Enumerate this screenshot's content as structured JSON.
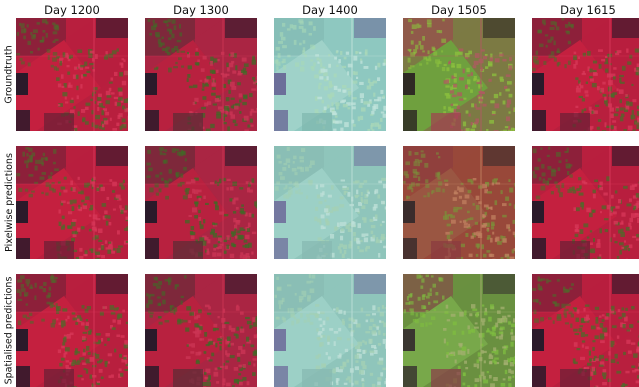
{
  "columns": [
    "Day 1200",
    "Day 1300",
    "Day 1400",
    "Day 1505",
    "Day 1615"
  ],
  "rows": [
    "Groundtruth",
    "Pixelwise predictions",
    "Spatialised predictions"
  ],
  "palettes": {
    "red": {
      "base": "#b81f3e",
      "tri": "#c4203f",
      "dark": "#2a1a2a",
      "green": "#4e6a2a",
      "band": "#6a2036",
      "light": "#d8385a"
    },
    "red_green": {
      "base": "#aa2543",
      "tri": "#b8213f",
      "dark": "#2a1a2a",
      "green": "#3f6a26",
      "band": "#5a2c34",
      "light": "#cc3555"
    },
    "cyan": {
      "base": "#8ec8c0",
      "tri": "#9fd2c9",
      "dark": "#6c6f9a",
      "green": "#a9d8b8",
      "band": "#7fb6ae",
      "light": "#c2e4dc"
    },
    "green": {
      "base": "#7c7a44",
      "tri": "#6fa03e",
      "dark": "#2f2a24",
      "green": "#8cc23e",
      "band": "#a14050",
      "light": "#b05a62"
    },
    "olive": {
      "base": "#98483a",
      "tri": "#9a5642",
      "dark": "#3a2c2c",
      "green": "#7c8e3a",
      "band": "#8a3a40",
      "light": "#c08060"
    },
    "cyan_pred": {
      "base": "#8fc5bb",
      "tri": "#9cd0c6",
      "dark": "#7478a0",
      "green": "#a4d0b4",
      "band": "#86b8b0",
      "light": "#bfe0d8"
    },
    "green_pred": {
      "base": "#6a9040",
      "tri": "#78a84a",
      "dark": "#3a3630",
      "green": "#7fbe40",
      "band": "#8a3a48",
      "light": "#a4b070"
    }
  },
  "grid": [
    [
      "red",
      "red_green",
      "cyan",
      "green",
      "red"
    ],
    [
      "red",
      "red_green",
      "cyan_pred",
      "olive",
      "red"
    ],
    [
      "red",
      "red_green",
      "cyan_pred",
      "green_pred",
      "red"
    ]
  ]
}
